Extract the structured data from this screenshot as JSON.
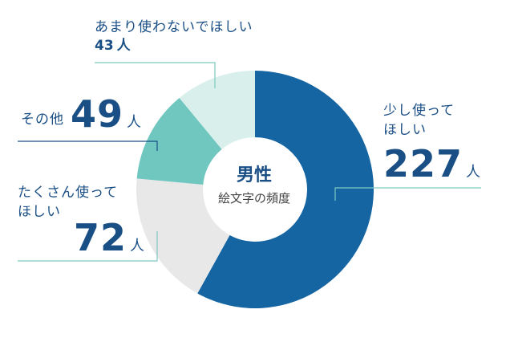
{
  "chart_data": {
    "type": "pie",
    "subtype": "donut",
    "center_title": "男性",
    "center_subtitle": "絵文字の頻度",
    "unit": "人",
    "slices": [
      {
        "label_lines": [
          "少し使って",
          "ほしい"
        ],
        "value": 227,
        "color": "#1565a3"
      },
      {
        "label_lines": [
          "たくさん使って",
          "ほしい"
        ],
        "value": 72,
        "color": "#e8e8e8"
      },
      {
        "label_lines": [
          "その他"
        ],
        "value": 49,
        "color": "#6fc7bf"
      },
      {
        "label_lines": [
          "あまり使わないでほしい"
        ],
        "value": 43,
        "color": "#d8efec"
      }
    ]
  }
}
